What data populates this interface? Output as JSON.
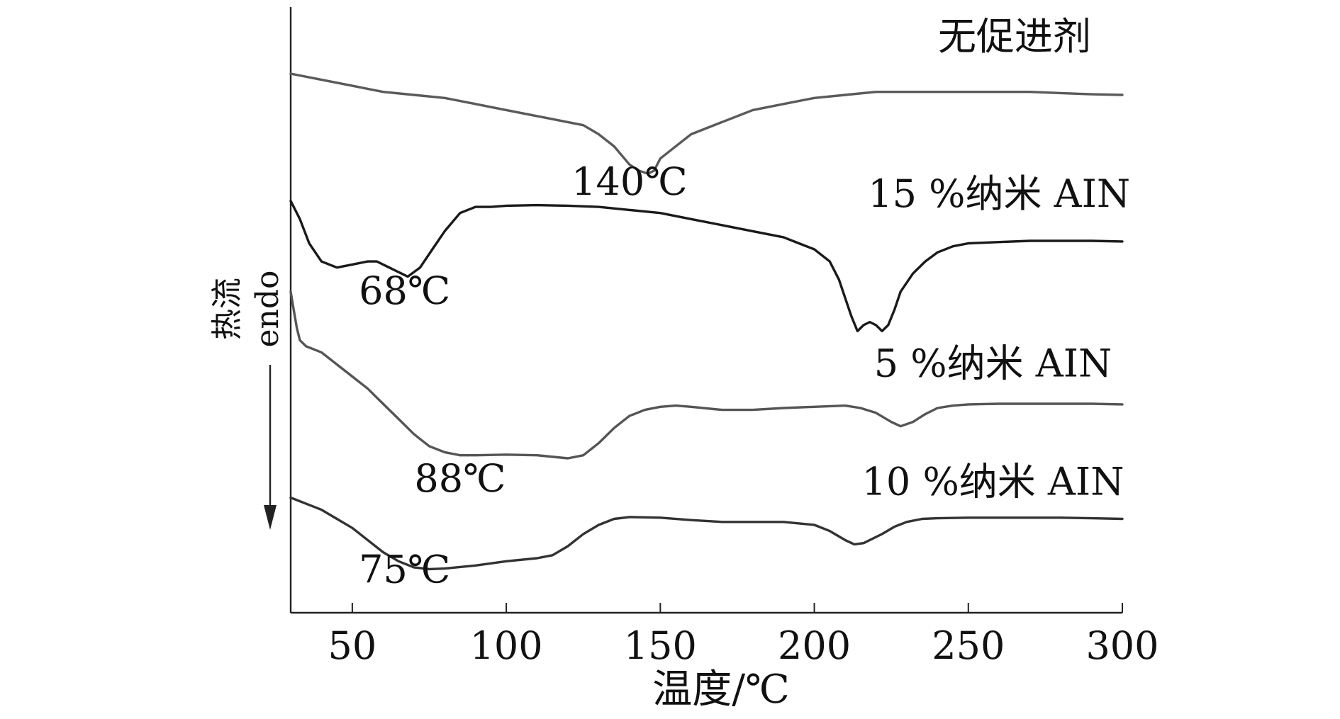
{
  "chart_data": {
    "type": "line",
    "title": "",
    "xlabel": "温度/℃",
    "ylabel": "热流",
    "ylabel_sub": "endo",
    "xlim": [
      30,
      300
    ],
    "xticks": [
      50,
      100,
      150,
      200,
      250,
      300
    ],
    "ylim": [
      0,
      100
    ],
    "grid": false,
    "legend": "none",
    "series": [
      {
        "name": "无促进剂",
        "color": "#5a5a5a",
        "x": [
          30,
          40,
          50,
          60,
          70,
          80,
          90,
          100,
          110,
          120,
          125,
          130,
          135,
          140,
          143,
          146,
          148,
          150,
          155,
          160,
          170,
          180,
          190,
          200,
          210,
          220,
          230,
          240,
          250,
          260,
          270,
          280,
          290,
          300
        ],
        "y": [
          89,
          88,
          87,
          86,
          85.5,
          85,
          84,
          83,
          82,
          81,
          80.5,
          79,
          77,
          74,
          73,
          72.5,
          73,
          75,
          77,
          79,
          81,
          83,
          84,
          85,
          85.5,
          86,
          86,
          86,
          86,
          86,
          86,
          85.8,
          85.6,
          85.5
        ]
      },
      {
        "name": "15 %纳米 AIN",
        "color": "#1a1a1a",
        "x": [
          30,
          33,
          36,
          40,
          45,
          50,
          55,
          58,
          62,
          66,
          68,
          72,
          76,
          80,
          85,
          90,
          95,
          100,
          110,
          120,
          130,
          140,
          150,
          160,
          170,
          180,
          190,
          195,
          200,
          205,
          208,
          210,
          212,
          214,
          216,
          218,
          220,
          222,
          224,
          226,
          228,
          232,
          236,
          240,
          245,
          250,
          260,
          270,
          280,
          290,
          300
        ],
        "y": [
          68,
          65,
          61,
          58,
          57,
          57.5,
          58,
          58,
          57,
          56,
          55.5,
          57,
          60,
          63,
          66,
          67,
          67,
          67.2,
          67.3,
          67.2,
          67,
          66.5,
          66,
          65,
          64,
          63,
          62,
          61,
          60,
          58,
          55,
          52,
          49,
          46.5,
          47.5,
          48,
          47.5,
          46.5,
          47.5,
          50,
          53,
          56,
          58,
          59.5,
          60.5,
          61,
          61.2,
          61.4,
          61.4,
          61.4,
          61.3
        ]
      },
      {
        "name": "5 %纳米 AIN",
        "color": "#555555",
        "x": [
          30,
          31,
          32,
          33,
          35,
          40,
          45,
          50,
          55,
          60,
          65,
          70,
          75,
          80,
          85,
          90,
          100,
          110,
          120,
          125,
          130,
          135,
          140,
          145,
          150,
          155,
          160,
          170,
          180,
          190,
          200,
          210,
          215,
          220,
          225,
          228,
          232,
          236,
          240,
          245,
          250,
          260,
          270,
          280,
          290,
          300
        ],
        "y": [
          53,
          50,
          47,
          45,
          44,
          43,
          41,
          39,
          37,
          34.5,
          32,
          29.5,
          27.5,
          26.5,
          26,
          26,
          26.1,
          26,
          25.5,
          26,
          28,
          30.5,
          32.5,
          33.5,
          34,
          34.2,
          34,
          33.5,
          33.5,
          33.8,
          34,
          34.2,
          33.8,
          33,
          31.5,
          30.8,
          31.5,
          32.8,
          33.8,
          34.2,
          34.4,
          34.5,
          34.5,
          34.5,
          34.5,
          34.4
        ]
      },
      {
        "name": "10 %纳米 AIN",
        "color": "#333333",
        "x": [
          30,
          35,
          40,
          45,
          50,
          55,
          60,
          65,
          70,
          75,
          80,
          90,
          100,
          110,
          115,
          120,
          125,
          130,
          135,
          140,
          150,
          160,
          170,
          180,
          190,
          200,
          205,
          210,
          213,
          216,
          218,
          222,
          226,
          230,
          235,
          240,
          250,
          260,
          270,
          280,
          290,
          300
        ],
        "y": [
          19,
          18,
          17,
          15.5,
          14,
          12,
          10,
          8.5,
          7.5,
          7.2,
          7.3,
          7.8,
          8.5,
          9,
          9.5,
          11,
          13,
          14.5,
          15.5,
          15.8,
          15.7,
          15.3,
          15,
          15,
          15,
          14.5,
          13.5,
          12,
          11.3,
          11.5,
          12,
          13,
          14.2,
          15,
          15.5,
          15.6,
          15.7,
          15.7,
          15.7,
          15.7,
          15.6,
          15.5
        ]
      }
    ],
    "annotations": [
      {
        "text": "无促进剂",
        "x": 265,
        "y": 93
      },
      {
        "text": "140℃",
        "x": 140,
        "y": 69
      },
      {
        "text": "15 %纳米 AIN",
        "x": 260,
        "y": 67
      },
      {
        "text": "68℃",
        "x": 67,
        "y": 51
      },
      {
        "text": "5 %纳米 AIN",
        "x": 258,
        "y": 39
      },
      {
        "text": "88℃",
        "x": 85,
        "y": 20
      },
      {
        "text": "10 %纳米 AIN",
        "x": 258,
        "y": 19.5
      },
      {
        "text": "75℃",
        "x": 67,
        "y": 5
      }
    ]
  }
}
